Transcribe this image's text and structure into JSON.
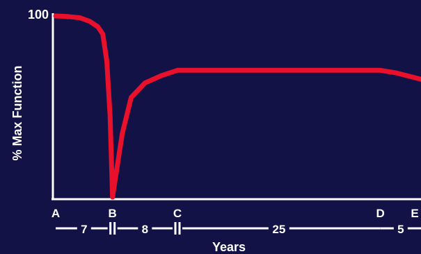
{
  "chart_data": {
    "type": "line",
    "title": "",
    "ylabel": "% Max Function",
    "xlabel": "Years",
    "y_tick_label": "100",
    "ylim": [
      0,
      100
    ],
    "xlim": [
      0,
      45
    ],
    "grid": false,
    "colors": {
      "background": "#121246",
      "line": "#e8102a",
      "axis": "#ffffff",
      "text": "#ffffff"
    },
    "series": [
      {
        "values": [
          {
            "x": 0,
            "y": 100
          },
          {
            "x": 1.5,
            "y": 99.7
          },
          {
            "x": 3,
            "y": 99
          },
          {
            "x": 4.2,
            "y": 97
          },
          {
            "x": 5.2,
            "y": 94
          },
          {
            "x": 5.8,
            "y": 90
          },
          {
            "x": 6.3,
            "y": 75
          },
          {
            "x": 6.7,
            "y": 45
          },
          {
            "x": 7,
            "y": 0
          },
          {
            "x": 8.2,
            "y": 35
          },
          {
            "x": 9.3,
            "y": 55
          },
          {
            "x": 11,
            "y": 63
          },
          {
            "x": 13,
            "y": 67
          },
          {
            "x": 15,
            "y": 70
          },
          {
            "x": 40,
            "y": 70
          },
          {
            "x": 42,
            "y": 68.5
          },
          {
            "x": 45,
            "y": 65
          }
        ]
      }
    ],
    "points": [
      {
        "label": "A",
        "x": 0
      },
      {
        "label": "B",
        "x": 7
      },
      {
        "label": "C",
        "x": 15
      },
      {
        "label": "D",
        "x": 40
      },
      {
        "label": "E",
        "x": 45
      }
    ],
    "intervals": [
      {
        "label": "7",
        "from": 0,
        "to": 7
      },
      {
        "label": "8",
        "from": 7,
        "to": 15
      },
      {
        "label": "25",
        "from": 15,
        "to": 40
      },
      {
        "label": "5",
        "from": 40,
        "to": 45
      }
    ]
  }
}
